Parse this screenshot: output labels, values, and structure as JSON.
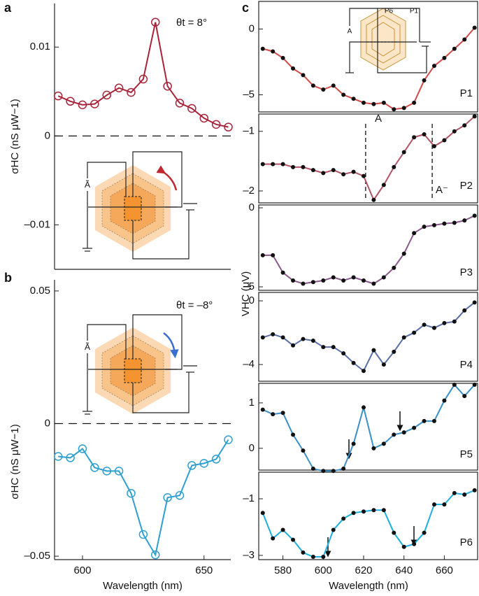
{
  "chart_data": [
    {
      "type": "line",
      "panel": "a",
      "annotations": [
        "θt = 8°"
      ],
      "y_label": "σHC (nS μW−1)",
      "inset_texts": [
        "Ã"
      ],
      "x": [
        590,
        595,
        600,
        605,
        610,
        615,
        620,
        625,
        630,
        635,
        640,
        645,
        650,
        655,
        660
      ],
      "values": [
        0.0045,
        0.0039,
        0.0035,
        0.0036,
        0.0046,
        0.0054,
        0.0049,
        0.0064,
        0.0128,
        0.0056,
        0.0037,
        0.0031,
        0.002,
        0.0013,
        0.001
      ],
      "color": "#a8243a",
      "marker": "open-circle",
      "zero_line": true,
      "xlim": [
        588.5,
        661
      ],
      "ylim": [
        -0.015,
        0.0149
      ],
      "yticks": [
        {
          "value": -0.01,
          "label": "–0.01"
        },
        0,
        0.01
      ]
    },
    {
      "type": "line",
      "panel": "b",
      "annotations": [
        "θt = –8°"
      ],
      "y_label": "σHC (nS μW−1)",
      "x_label": "Wavelength (nm)",
      "inset_texts": [
        "Ã"
      ],
      "x": [
        590,
        595,
        600,
        605,
        610,
        615,
        620,
        625,
        630,
        635,
        640,
        645,
        650,
        655,
        660
      ],
      "values": [
        -0.0124,
        -0.0129,
        -0.0095,
        -0.0166,
        -0.0179,
        -0.0179,
        -0.0263,
        -0.0418,
        -0.0495,
        -0.0279,
        -0.0271,
        -0.0158,
        -0.015,
        -0.0134,
        -0.0061
      ],
      "color": "#2e9fd0",
      "marker": "open-circle",
      "zero_line": true,
      "xlim": [
        588.5,
        661
      ],
      "ylim": [
        -0.0513,
        0.0542
      ],
      "yticks": [
        {
          "value": -0.05,
          "label": "–0.05"
        },
        0,
        0.05
      ],
      "xticks": [
        600,
        650
      ]
    },
    {
      "type": "line",
      "panel": "c",
      "annotations": [
        "P1"
      ],
      "y_label": "VHC (μV)",
      "inset_texts": [
        "A",
        "P6",
        "P1"
      ],
      "x": [
        570,
        575,
        580,
        585,
        590,
        595,
        600,
        605,
        610,
        615,
        620,
        625,
        630,
        635,
        640,
        645,
        650,
        655,
        660,
        665,
        670,
        675
      ],
      "values": [
        -1.5,
        -1.7,
        -2.2,
        -3.0,
        -3.5,
        -4.3,
        -4.6,
        -4.3,
        -5.0,
        -5.3,
        -5.6,
        -5.7,
        -5.6,
        -6.1,
        -6.0,
        -5.6,
        -3.9,
        -2.8,
        -2.2,
        -1.5,
        -0.8,
        0.1
      ],
      "color": "#d24a48",
      "marker": "dot",
      "xlim": [
        568,
        676.5
      ],
      "ylim": [
        -6.3,
        2.1
      ],
      "yticks": [
        {
          "value": -5,
          "label": "–5"
        },
        0
      ]
    },
    {
      "type": "line",
      "annotations": [
        "P2",
        "A",
        "A⁻"
      ],
      "x": [
        570,
        575,
        580,
        585,
        590,
        595,
        600,
        605,
        610,
        615,
        620,
        625,
        630,
        635,
        640,
        645,
        650,
        655,
        660,
        665,
        670,
        675
      ],
      "values": [
        -1.55,
        -1.55,
        -1.55,
        -1.6,
        -1.6,
        -1.65,
        -1.7,
        -1.65,
        -1.72,
        -1.68,
        -1.75,
        -2.15,
        -1.9,
        -1.6,
        -1.35,
        -1.1,
        -1.05,
        -1.25,
        -1.15,
        -1.0,
        -0.9,
        -0.75
      ],
      "color": "#b05466",
      "marker": "dot",
      "xlim": [
        568,
        676.5
      ],
      "ylim": [
        -2.2,
        -0.71
      ],
      "yticks": [
        {
          "value": -2,
          "label": "–2"
        },
        {
          "value": -1,
          "label": "–1"
        }
      ]
    },
    {
      "type": "line",
      "annotations": [
        "P3"
      ],
      "x": [
        570,
        575,
        580,
        585,
        590,
        595,
        600,
        605,
        610,
        615,
        620,
        625,
        630,
        635,
        640,
        645,
        650,
        655,
        660,
        665,
        670,
        675
      ],
      "values": [
        -3.0,
        -3.0,
        -4.1,
        -4.6,
        -4.8,
        -4.7,
        -4.6,
        -4.4,
        -4.6,
        -4.4,
        -4.6,
        -4.8,
        -4.4,
        -3.8,
        -2.9,
        -1.6,
        -1.2,
        -1.1,
        -1.0,
        -0.95,
        -0.8,
        -0.5
      ],
      "color": "#8a5a8c",
      "marker": "dot",
      "xlim": [
        568,
        676.5
      ],
      "ylim": [
        -5.22,
        0.18
      ],
      "yticks": [
        {
          "value": -5,
          "label": "–5"
        },
        0
      ]
    },
    {
      "type": "line",
      "annotations": [
        "P4"
      ],
      "x": [
        570,
        575,
        580,
        585,
        590,
        595,
        600,
        605,
        610,
        615,
        620,
        625,
        630,
        635,
        640,
        645,
        650,
        655,
        660,
        665,
        670,
        675
      ],
      "values": [
        -2.3,
        -2.1,
        -2.3,
        -2.8,
        -2.4,
        -2.5,
        -2.9,
        -2.9,
        -3.3,
        -3.9,
        -4.4,
        -3.1,
        -4.0,
        -3.2,
        -2.3,
        -2.0,
        -1.5,
        -1.7,
        -1.4,
        -1.3,
        -0.6,
        -0.1
      ],
      "color": "#5a6fa8",
      "marker": "dot",
      "xlim": [
        568,
        676.5
      ],
      "ylim": [
        -5.05,
        0.53
      ],
      "yticks": [
        {
          "value": -4,
          "label": "–4"
        },
        0
      ]
    },
    {
      "type": "line",
      "annotations": [
        "P5"
      ],
      "x": [
        570,
        575,
        580,
        585,
        590,
        595,
        600,
        605,
        610,
        615,
        620,
        625,
        630,
        635,
        640,
        645,
        650,
        655,
        660,
        665,
        670,
        675
      ],
      "values": [
        0.85,
        0.75,
        0.78,
        0.3,
        -0.05,
        -0.45,
        -0.5,
        -0.5,
        -0.45,
        0.1,
        0.9,
        0.0,
        0.1,
        0.3,
        0.35,
        0.45,
        0.6,
        0.6,
        1.05,
        1.4,
        1.15,
        1.4
      ],
      "color": "#3a90c8",
      "marker": "dot",
      "xlim": [
        568,
        676.5
      ],
      "ylim": [
        -0.48,
        1.43
      ],
      "yticks": [
        0,
        1
      ]
    },
    {
      "type": "line",
      "annotations": [
        "P6"
      ],
      "x_label": "Wavelength (nm)",
      "x": [
        570,
        575,
        580,
        585,
        590,
        595,
        600,
        605,
        610,
        615,
        620,
        625,
        630,
        635,
        640,
        645,
        650,
        655,
        660,
        665,
        670,
        675
      ],
      "values": [
        -1.5,
        -2.4,
        -2.1,
        -2.45,
        -2.9,
        -3.05,
        -3.05,
        -2.1,
        -1.7,
        -1.5,
        -1.45,
        -1.4,
        -1.4,
        -2.2,
        -2.7,
        -2.6,
        -2.2,
        -1.2,
        -1.2,
        -0.8,
        -0.85,
        -0.7
      ],
      "color": "#1eaee0",
      "marker": "dot",
      "xlim": [
        568,
        676.5
      ],
      "ylim": [
        -3.15,
        -0.06
      ],
      "yticks": [
        {
          "value": -3,
          "label": "–3"
        },
        {
          "value": -1,
          "label": "–1"
        }
      ],
      "xticks": [
        580,
        600,
        620,
        640,
        660
      ]
    }
  ]
}
